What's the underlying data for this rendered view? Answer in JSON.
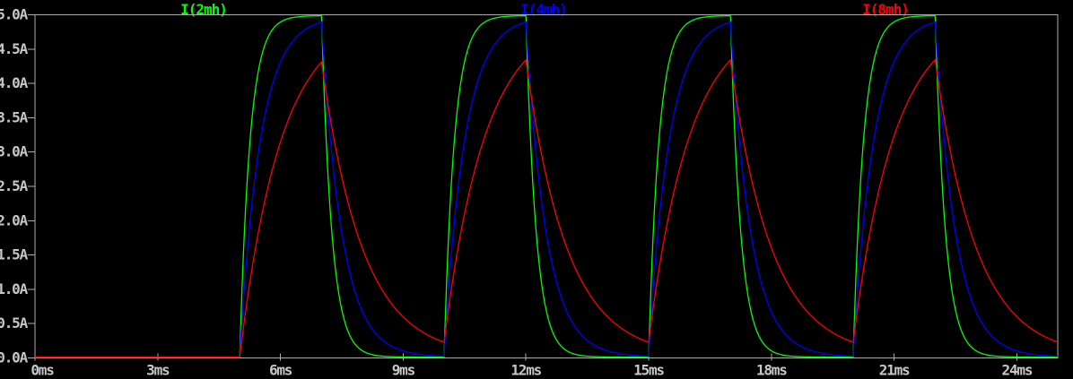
{
  "colors": {
    "background": "#000000",
    "plot_border": "#aeaeae",
    "axis_text": "#c8c8c8"
  },
  "chart_data": {
    "type": "line",
    "title": "",
    "grid": false,
    "legend_position": "top",
    "x_axis": {
      "unit": "ms",
      "min_ms": 0,
      "max_ms": 25,
      "tick_interval_ms": 3,
      "tick_values_ms": [
        0,
        3,
        6,
        9,
        12,
        15,
        18,
        21,
        24
      ],
      "tick_labels": [
        "0ms",
        "3ms",
        "6ms",
        "9ms",
        "12ms",
        "15ms",
        "18ms",
        "21ms",
        "24ms"
      ]
    },
    "y_axis": {
      "unit": "A",
      "min_A": 0,
      "max_A": 5,
      "tick_interval_A": 0.5,
      "tick_values_A": [
        5.0,
        4.5,
        4.0,
        3.5,
        3.0,
        2.5,
        2.0,
        1.5,
        1.0,
        0.5,
        0.0
      ],
      "tick_labels": [
        "5.0A",
        "4.5A",
        "4.0A",
        "3.5A",
        "3.0A",
        "2.5A",
        "2.0A",
        "1.5A",
        "1.0A",
        "0.5A",
        "0.0A"
      ]
    },
    "excitation": {
      "type": "pulse",
      "on_times_ms": [
        5,
        10,
        15,
        20
      ],
      "pulse_width_ms": 2,
      "period_ms": 5
    },
    "steady_state_current_A": 5.0,
    "series": [
      {
        "name": "I(2mh)",
        "inductance_mH": 2,
        "tau_ms": 0.25,
        "color": "#00ff00",
        "peak_A": 5.0
      },
      {
        "name": "I(4mh)",
        "inductance_mH": 4,
        "tau_ms": 0.5,
        "color": "#0000ff",
        "peak_A": 4.91
      },
      {
        "name": "I(8mh)",
        "inductance_mH": 8,
        "tau_ms": 1.0,
        "color": "#ff0000",
        "peak_A": 4.32
      }
    ]
  }
}
